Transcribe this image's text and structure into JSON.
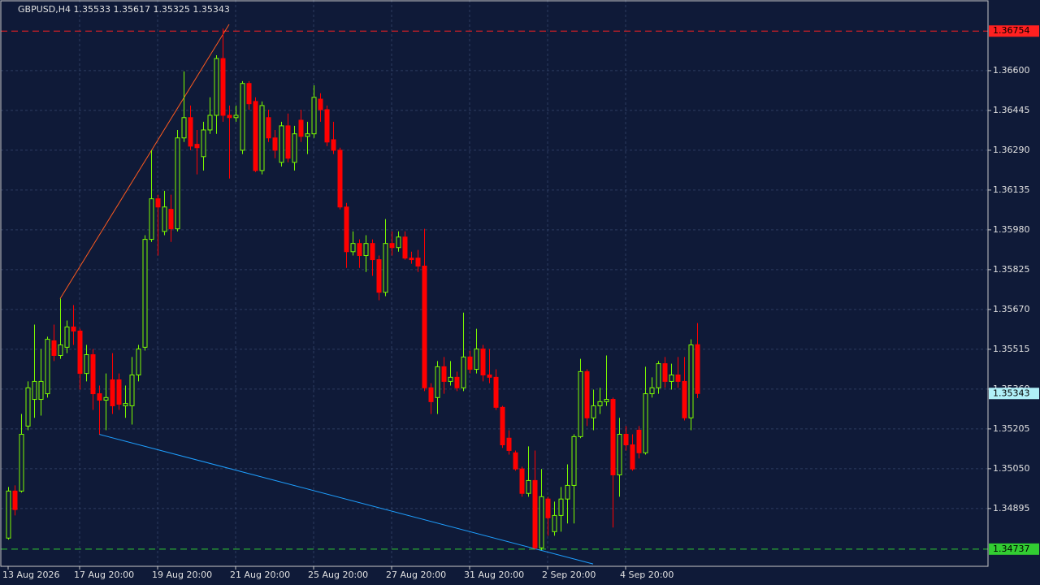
{
  "chart_data": {
    "type": "candlestick",
    "title": "GBPUSD,H4  1.35533 1.35617 1.35325 1.35343",
    "categories": [
      "13 Aug 2026",
      null,
      null,
      null,
      null,
      null,
      null,
      null,
      null,
      null,
      null,
      "17 Aug 20:00",
      null,
      null,
      null,
      null,
      null,
      null,
      null,
      null,
      null,
      null,
      null,
      "19 Aug 20:00",
      null,
      null,
      null,
      null,
      null,
      null,
      null,
      null,
      null,
      null,
      null,
      "21 Aug 20:00",
      null,
      null,
      null,
      null,
      null,
      null,
      null,
      null,
      null,
      null,
      null,
      "25 Aug 20:00",
      null,
      null,
      null,
      null,
      null,
      null,
      null,
      null,
      null,
      null,
      null,
      "27 Aug 20:00",
      null,
      null,
      null,
      null,
      null,
      null,
      null,
      null,
      null,
      null,
      null,
      "31 Aug 20:00",
      null,
      null,
      null,
      null,
      null,
      null,
      null,
      null,
      null,
      null,
      null,
      "2 Sep 20:00",
      null,
      null,
      null,
      null,
      null,
      null,
      null,
      null,
      null,
      null,
      null,
      "4 Sep 20:00",
      null,
      null,
      null,
      null,
      null,
      null,
      null,
      null,
      null,
      null,
      null
    ],
    "open": [
      1.3478,
      1.34963,
      1.34963,
      1.35216,
      1.3532,
      1.3532,
      1.35342,
      1.35548,
      1.35491,
      1.35523,
      1.35602,
      1.35586,
      1.35421,
      1.35494,
      1.35342,
      1.35317,
      1.35396,
      1.35396,
      1.35295,
      1.35295,
      1.35415,
      1.35523,
      1.35943,
      1.36101,
      1.35974,
      1.3606,
      1.35984,
      1.36338,
      1.36417,
      1.36313,
      1.36265,
      1.36369,
      1.36426,
      1.36647,
      1.36426,
      1.36417,
      1.3629,
      1.3655,
      1.3648,
      1.36211,
      1.36417,
      1.36338,
      1.36243,
      1.36385,
      1.36243,
      1.36407,
      1.36344,
      1.36354,
      1.36489,
      1.36448,
      1.36331,
      1.3629,
      1.36069,
      1.35895,
      1.35927,
      1.3588,
      1.35927,
      1.35864,
      1.35737,
      1.35927,
      1.35911,
      1.35952,
      1.3587,
      1.3587,
      1.35839,
      1.35365,
      1.35327,
      1.35447,
      1.3539,
      1.35406,
      1.35365,
      1.35485,
      1.35437,
      1.35516,
      1.35415,
      1.35406,
      1.35289,
      1.35169,
      1.35112,
      1.35049,
      1.34954,
      1.35004,
      1.34742,
      1.34932,
      1.34805,
      1.34868,
      1.34932,
      1.34985,
      1.35175,
      1.35428,
      1.35248,
      1.35295,
      1.35311,
      1.3532,
      1.35026,
      1.35184,
      1.35143,
      1.352,
      1.35112,
      1.35342,
      1.35365,
      1.35459,
      1.3539,
      1.35415,
      1.3539,
      1.35248,
      1.35533
    ],
    "high": [
      1.34979,
      1.34985,
      1.35263,
      1.3539,
      1.35611,
      1.35516,
      1.35564,
      1.35611,
      1.35712,
      1.35627,
      1.35687,
      1.35595,
      1.35532,
      1.35516,
      1.35374,
      1.35421,
      1.355,
      1.35421,
      1.35374,
      1.35485,
      1.35532,
      1.35959,
      1.3629,
      1.36117,
      1.36132,
      1.36117,
      1.36369,
      1.36597,
      1.36464,
      1.36369,
      1.36401,
      1.36496,
      1.3666,
      1.36764,
      1.36464,
      1.36464,
      1.36559,
      1.36559,
      1.36496,
      1.3648,
      1.36448,
      1.36369,
      1.36401,
      1.36433,
      1.36385,
      1.36448,
      1.36401,
      1.36543,
      1.36512,
      1.36464,
      1.36401,
      1.363,
      1.36085,
      1.35974,
      1.35943,
      1.35959,
      1.35943,
      1.3588,
      1.36022,
      1.35974,
      1.35974,
      1.35974,
      1.35895,
      1.35902,
      1.35984,
      1.35383,
      1.35469,
      1.35485,
      1.35469,
      1.35428,
      1.35658,
      1.3551,
      1.35595,
      1.35532,
      1.35516,
      1.35437,
      1.35295,
      1.352,
      1.35121,
      1.35058,
      1.35137,
      1.35121,
      1.35049,
      1.34941,
      1.34922,
      1.34979,
      1.35067,
      1.35184,
      1.35478,
      1.35437,
      1.35358,
      1.35365,
      1.35491,
      1.35327,
      1.35248,
      1.35216,
      1.35184,
      1.35216,
      1.35447,
      1.35406,
      1.35469,
      1.35485,
      1.35459,
      1.35485,
      1.35485,
      1.35554,
      1.35617
    ],
    "low": [
      1.34774,
      1.34868,
      1.34957,
      1.352,
      1.35248,
      1.35257,
      1.35327,
      1.35469,
      1.35478,
      1.355,
      1.35532,
      1.35358,
      1.3539,
      1.35279,
      1.35184,
      1.352,
      1.35263,
      1.35279,
      1.35248,
      1.35222,
      1.3539,
      1.3551,
      1.35933,
      1.3588,
      1.35959,
      1.35933,
      1.35974,
      1.36322,
      1.3629,
      1.36196,
      1.36211,
      1.36354,
      1.36354,
      1.36401,
      1.3618,
      1.36401,
      1.36275,
      1.36448,
      1.36205,
      1.36196,
      1.36322,
      1.36259,
      1.36227,
      1.36243,
      1.36211,
      1.36322,
      1.36275,
      1.36338,
      1.36401,
      1.36306,
      1.36275,
      1.3606,
      1.35832,
      1.3588,
      1.35832,
      1.35816,
      1.35801,
      1.35706,
      1.35722,
      1.3588,
      1.35895,
      1.35864,
      1.35848,
      1.35816,
      1.35352,
      1.35263,
      1.35263,
      1.35342,
      1.35374,
      1.35352,
      1.35352,
      1.35421,
      1.35421,
      1.3539,
      1.35383,
      1.35279,
      1.35131,
      1.35105,
      1.35042,
      1.34941,
      1.34941,
      1.34736,
      1.34733,
      1.34789,
      1.34789,
      1.34805,
      1.34837,
      1.34837,
      1.35169,
      1.35216,
      1.352,
      1.35263,
      1.35295,
      1.34821,
      1.34941,
      1.35121,
      1.35042,
      1.3509,
      1.35105,
      1.35327,
      1.35342,
      1.35365,
      1.35358,
      1.35365,
      1.35238,
      1.352,
      1.35325
    ],
    "close": [
      1.34963,
      1.34891,
      1.35184,
      1.35365,
      1.3539,
      1.3539,
      1.35554,
      1.35491,
      1.35532,
      1.35602,
      1.35586,
      1.35421,
      1.35494,
      1.35342,
      1.35317,
      1.35327,
      1.35295,
      1.35301,
      1.35304,
      1.35415,
      1.35516,
      1.35943,
      1.36101,
      1.36069,
      1.36069,
      1.35984,
      1.36338,
      1.36417,
      1.36306,
      1.363,
      1.36369,
      1.36426,
      1.36647,
      1.36426,
      1.36417,
      1.36426,
      1.3655,
      1.36471,
      1.36211,
      1.36464,
      1.36338,
      1.3629,
      1.36385,
      1.36259,
      1.36354,
      1.36344,
      1.36354,
      1.36496,
      1.36448,
      1.36322,
      1.3629,
      1.36069,
      1.35895,
      1.35927,
      1.3588,
      1.35927,
      1.35864,
      1.35737,
      1.35927,
      1.35911,
      1.35952,
      1.3587,
      1.35864,
      1.35839,
      1.35365,
      1.35311,
      1.35447,
      1.3539,
      1.35406,
      1.35365,
      1.35485,
      1.35437,
      1.35516,
      1.35415,
      1.35406,
      1.35289,
      1.35143,
      1.35121,
      1.35049,
      1.34954,
      1.35004,
      1.34742,
      1.34941,
      1.34859,
      1.34868,
      1.34932,
      1.34985,
      1.35175,
      1.35428,
      1.35248,
      1.35295,
      1.35311,
      1.3532,
      1.35026,
      1.35184,
      1.35143,
      1.35049,
      1.35112,
      1.35342,
      1.35365,
      1.35459,
      1.3539,
      1.35415,
      1.3539,
      1.35248,
      1.35532,
      1.35343
    ],
    "up_color": "#7cfc00",
    "down_color": "#ff0000",
    "ylim": [
      1.3467,
      1.36875
    ],
    "yticks": [
      {
        "value": 1.366,
        "label": "1.36600"
      },
      {
        "value": 1.36445,
        "label": "1.36445"
      },
      {
        "value": 1.3629,
        "label": "1.36290"
      },
      {
        "value": 1.36135,
        "label": "1.36135"
      },
      {
        "value": 1.3598,
        "label": "1.35980"
      },
      {
        "value": 1.35825,
        "label": "1.35825"
      },
      {
        "value": 1.3567,
        "label": "1.35670"
      },
      {
        "value": 1.35515,
        "label": "1.35515"
      },
      {
        "value": 1.3536,
        "label": "1.35360"
      },
      {
        "value": 1.35205,
        "label": "1.35205"
      },
      {
        "value": 1.3505,
        "label": "1.35050"
      },
      {
        "value": 1.34895,
        "label": "1.34895"
      }
    ],
    "grid": true,
    "hlines": [
      {
        "value": 1.36754,
        "label": "1.36754",
        "color": "#ff2020"
      },
      {
        "value": 1.34737,
        "label": "1.34737",
        "color": "#32cd32"
      }
    ],
    "current_price": {
      "value": 1.35343,
      "label": "1.35343",
      "color": "#b0f0f8"
    },
    "trendlines": [
      {
        "x": [
          8,
          34
        ],
        "y": [
          1.35712,
          1.3678
        ],
        "color": "#ff5a1e"
      },
      {
        "x": [
          14,
          90
        ],
        "y": [
          1.35184,
          1.34679
        ],
        "color": "#1e9fff"
      }
    ]
  }
}
